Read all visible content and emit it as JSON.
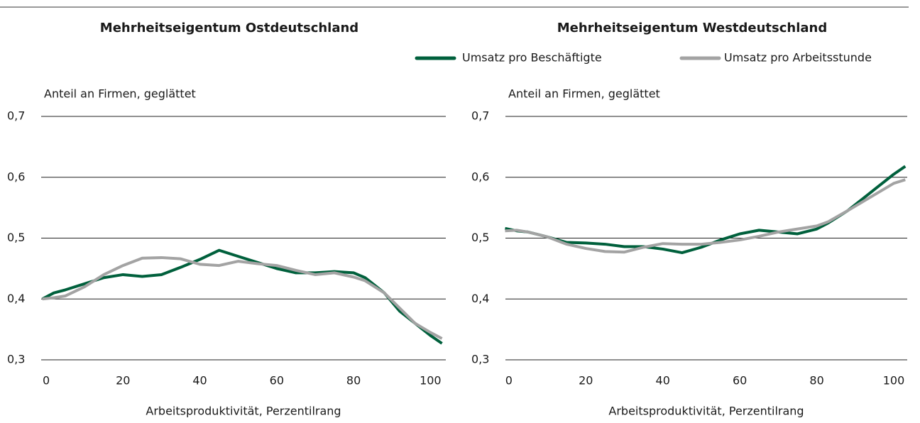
{
  "chart_data": [
    {
      "type": "line",
      "title": "Mehrheitseigentum Ostdeutschland",
      "y_label": "Anteil an Firmen, geglättet",
      "x_label": "Arbeitsproduktivität, Perzentilrang",
      "x": [
        -1,
        2,
        5,
        10,
        15,
        20,
        25,
        30,
        35,
        40,
        45,
        50,
        55,
        60,
        65,
        70,
        75,
        80,
        83,
        88,
        92,
        96,
        100,
        103
      ],
      "series": [
        {
          "color": "#00603c",
          "values": [
            0.4,
            0.41,
            0.415,
            0.425,
            0.435,
            0.44,
            0.437,
            0.44,
            0.452,
            0.465,
            0.48,
            0.47,
            0.46,
            0.45,
            0.443,
            0.443,
            0.445,
            0.443,
            0.435,
            0.41,
            0.38,
            0.36,
            0.34,
            0.327
          ]
        },
        {
          "color": "#a3a3a3",
          "values": [
            0.4,
            0.402,
            0.405,
            0.42,
            0.44,
            0.455,
            0.467,
            0.468,
            0.466,
            0.457,
            0.455,
            0.462,
            0.458,
            0.455,
            0.447,
            0.44,
            0.443,
            0.436,
            0.43,
            0.41,
            0.385,
            0.36,
            0.345,
            0.335
          ]
        }
      ],
      "xlim": [
        -1.3,
        104
      ],
      "xticks": [
        0,
        20,
        40,
        60,
        80,
        100
      ],
      "ylim": [
        0.3,
        0.7
      ],
      "yticks": [
        {
          "value": 0.3,
          "label": "0,3"
        },
        {
          "value": 0.4,
          "label": "0,4"
        },
        {
          "value": 0.5,
          "label": "0,5"
        },
        {
          "value": 0.6,
          "label": "0,6"
        },
        {
          "value": 0.7,
          "label": "0,7"
        }
      ],
      "grid": true
    },
    {
      "type": "line",
      "title": "Mehrheitseigentum Westdeutschland",
      "y_label": "Anteil an Firmen, geglättet",
      "x_label": "Arbeitsproduktivität, Perzentilrang",
      "x": [
        -1,
        2,
        5,
        10,
        15,
        20,
        25,
        30,
        35,
        40,
        45,
        50,
        55,
        60,
        65,
        70,
        75,
        80,
        83,
        88,
        92,
        96,
        100,
        103
      ],
      "series": [
        {
          "name": "Umsatz pro Beschäftigte",
          "color": "#00603c",
          "values": [
            0.516,
            0.512,
            0.51,
            0.502,
            0.493,
            0.492,
            0.49,
            0.486,
            0.486,
            0.482,
            0.476,
            0.485,
            0.497,
            0.507,
            0.513,
            0.51,
            0.507,
            0.515,
            0.525,
            0.545,
            0.565,
            0.585,
            0.605,
            0.618
          ]
        },
        {
          "name": "Umsatz pro Arbeitsstunde",
          "color": "#a3a3a3",
          "values": [
            0.512,
            0.513,
            0.51,
            0.502,
            0.49,
            0.483,
            0.478,
            0.477,
            0.485,
            0.491,
            0.49,
            0.49,
            0.493,
            0.497,
            0.503,
            0.51,
            0.515,
            0.52,
            0.527,
            0.545,
            0.56,
            0.575,
            0.59,
            0.596
          ]
        }
      ],
      "xlim": [
        -0.9,
        103.5
      ],
      "xticks": [
        0,
        20,
        40,
        60,
        80,
        100
      ],
      "ylim": [
        0.3,
        0.7
      ],
      "yticks": [
        {
          "value": 0.3,
          "label": "0,3"
        },
        {
          "value": 0.4,
          "label": "0,4"
        },
        {
          "value": 0.5,
          "label": "0,5"
        },
        {
          "value": 0.6,
          "label": "0,6"
        },
        {
          "value": 0.7,
          "label": "0,7"
        }
      ],
      "grid": true,
      "legend": "top"
    }
  ]
}
